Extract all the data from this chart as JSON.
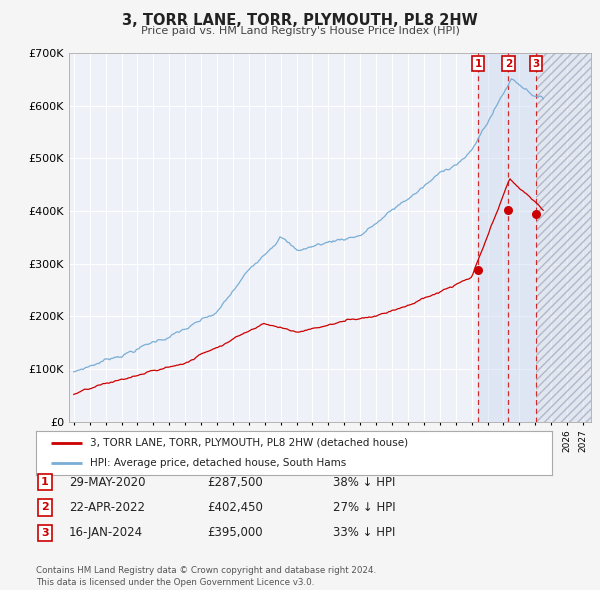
{
  "title": "3, TORR LANE, TORR, PLYMOUTH, PL8 2HW",
  "subtitle": "Price paid vs. HM Land Registry's House Price Index (HPI)",
  "ylim": [
    0,
    700000
  ],
  "yticks": [
    0,
    100000,
    200000,
    300000,
    400000,
    500000,
    600000,
    700000
  ],
  "ytick_labels": [
    "£0",
    "£100K",
    "£200K",
    "£300K",
    "£400K",
    "£500K",
    "£600K",
    "£700K"
  ],
  "hpi_color": "#7aaed6",
  "price_color": "#cc0000",
  "background_color": "#f5f5f5",
  "plot_bg_color": "#eef1f8",
  "grid_color": "#ffffff",
  "sale_dates_numeric": [
    2020.414,
    2022.304,
    2024.046
  ],
  "sale_prices": [
    287500,
    402450,
    395000
  ],
  "sale_labels": [
    "1",
    "2",
    "3"
  ],
  "legend_price_label": "3, TORR LANE, TORR, PLYMOUTH, PL8 2HW (detached house)",
  "legend_hpi_label": "HPI: Average price, detached house, South Hams",
  "table_rows": [
    [
      "1",
      "29-MAY-2020",
      "£287,500",
      "38% ↓ HPI"
    ],
    [
      "2",
      "22-APR-2022",
      "£402,450",
      "27% ↓ HPI"
    ],
    [
      "3",
      "16-JAN-2024",
      "£395,000",
      "33% ↓ HPI"
    ]
  ],
  "footer": "Contains HM Land Registry data © Crown copyright and database right 2024.\nThis data is licensed under the Open Government Licence v3.0.",
  "xlim_start": 1994.7,
  "xlim_end": 2027.5,
  "future_shade_start": 2024.046
}
